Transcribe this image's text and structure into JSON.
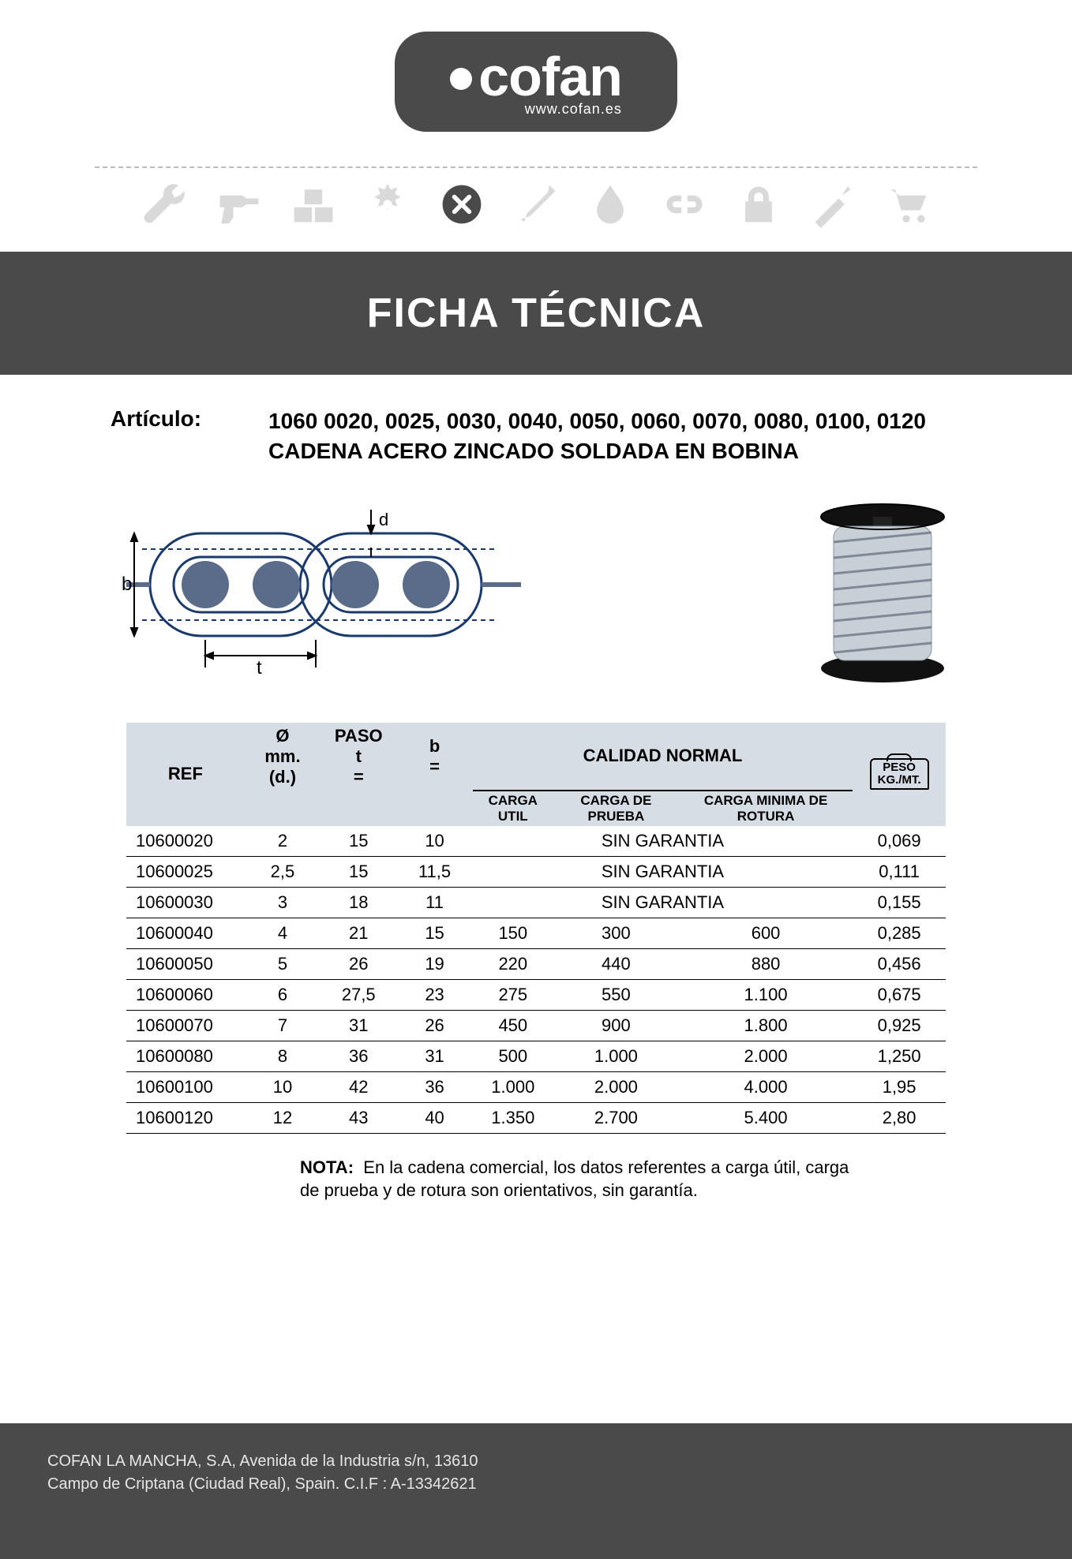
{
  "brand": {
    "name": "cofan",
    "url": "www.cofan.es"
  },
  "banner_title": "FICHA TÉCNICA",
  "articulo": {
    "label": "Artículo:",
    "codes": "1060 0020, 0025, 0030, 0040, 0050, 0060, 0070, 0080, 0100, 0120",
    "desc": "CADENA ACERO ZINCADO SOLDADA EN BOBINA"
  },
  "diagram": {
    "labels": {
      "b": "b",
      "t": "t",
      "d": "d"
    }
  },
  "table": {
    "headers": {
      "ref": "REF",
      "diam_top": "Ø",
      "diam_mid": "mm.",
      "diam_bot": "(d.)",
      "paso_top": "PASO",
      "paso_mid": "t",
      "paso_bot": "=",
      "b_top": "b",
      "b_bot": "=",
      "calidad": "CALIDAD NORMAL",
      "carga_util": "CARGA UTIL",
      "carga_prueba": "CARGA DE PRUEBA",
      "carga_rotura": "CARGA MINIMA DE ROTURA",
      "peso_top": "PESO",
      "peso_bot": "KG./MT."
    },
    "sin_garantia": "SIN GARANTIA",
    "rows": [
      {
        "ref": "10600020",
        "d": "2",
        "t": "15",
        "b": "10",
        "util": null,
        "prueba": null,
        "rotura": null,
        "peso": "0,069"
      },
      {
        "ref": "10600025",
        "d": "2,5",
        "t": "15",
        "b": "11,5",
        "util": null,
        "prueba": null,
        "rotura": null,
        "peso": "0,111"
      },
      {
        "ref": "10600030",
        "d": "3",
        "t": "18",
        "b": "11",
        "util": null,
        "prueba": null,
        "rotura": null,
        "peso": "0,155"
      },
      {
        "ref": "10600040",
        "d": "4",
        "t": "21",
        "b": "15",
        "util": "150",
        "prueba": "300",
        "rotura": "600",
        "peso": "0,285"
      },
      {
        "ref": "10600050",
        "d": "5",
        "t": "26",
        "b": "19",
        "util": "220",
        "prueba": "440",
        "rotura": "880",
        "peso": "0,456"
      },
      {
        "ref": "10600060",
        "d": "6",
        "t": "27,5",
        "b": "23",
        "util": "275",
        "prueba": "550",
        "rotura": "1.100",
        "peso": "0,675"
      },
      {
        "ref": "10600070",
        "d": "7",
        "t": "31",
        "b": "26",
        "util": "450",
        "prueba": "900",
        "rotura": "1.800",
        "peso": "0,925"
      },
      {
        "ref": "10600080",
        "d": "8",
        "t": "36",
        "b": "31",
        "util": "500",
        "prueba": "1.000",
        "rotura": "2.000",
        "peso": "1,250"
      },
      {
        "ref": "10600100",
        "d": "10",
        "t": "42",
        "b": "36",
        "util": "1.000",
        "prueba": "2.000",
        "rotura": "4.000",
        "peso": "1,95"
      },
      {
        "ref": "10600120",
        "d": "12",
        "t": "43",
        "b": "40",
        "util": "1.350",
        "prueba": "2.700",
        "rotura": "5.400",
        "peso": "2,80"
      }
    ]
  },
  "nota": {
    "label": "NOTA:",
    "text": "En la cadena comercial, los datos referentes a carga útil, carga de prueba y de rotura son orientativos, sin garantía."
  },
  "footer": {
    "line1": "COFAN LA MANCHA, S.A, Avenida de la Industria s/n, 13610",
    "line2": "Campo de Criptana (Ciudad Real), Spain. C.I.F : A-13342621"
  },
  "colors": {
    "dark": "#4a4a4a",
    "icon_grey": "#d9d9d9",
    "table_head_bg": "#d6dde4"
  }
}
